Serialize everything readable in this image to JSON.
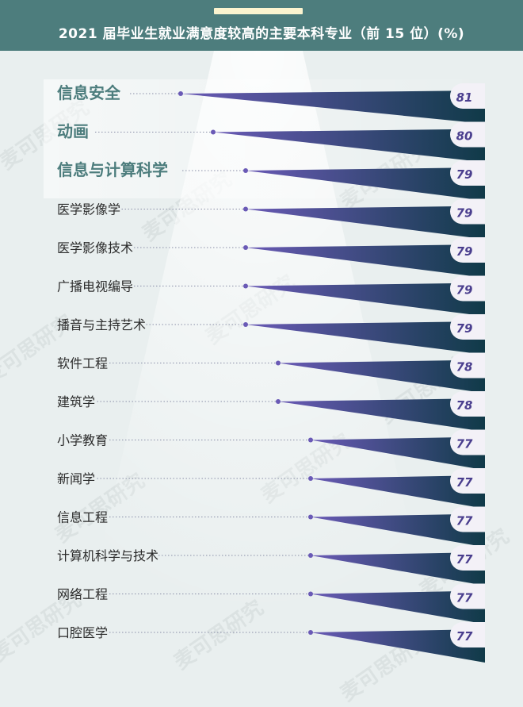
{
  "header": {
    "title": "2021 届毕业生就业满意度较高的主要本科专业（前 15 位）(%)",
    "accent_color": "#fbf3cf",
    "background_color": "#4d7d7d"
  },
  "watermark": {
    "text": "麦可思研究"
  },
  "colors": {
    "triangle_start": "#6a5ab6",
    "triangle_end": "#103a48",
    "highlight_text": "#4d7d7d",
    "normal_text": "#2b2b2b",
    "badge_bg": "#f3f1f7",
    "badge_text": "#4a3e8e"
  },
  "chart_data": {
    "type": "bar",
    "title": "2021 届毕业生就业满意度较高的主要本科专业（前 15 位）(%)",
    "unit": "%",
    "categories": [
      "信息安全",
      "动画",
      "信息与计算科学",
      "医学影像学",
      "医学影像技术",
      "广播电视编导",
      "播音与主持艺术",
      "软件工程",
      "建筑学",
      "小学教育",
      "新闻学",
      "信息工程",
      "计算机科学与技术",
      "网络工程",
      "口腔医学"
    ],
    "values": [
      81,
      80,
      79,
      79,
      79,
      79,
      79,
      78,
      78,
      77,
      77,
      77,
      77,
      77,
      77
    ],
    "highlighted": [
      true,
      true,
      true,
      false,
      false,
      false,
      false,
      false,
      false,
      false,
      false,
      false,
      false,
      false,
      false
    ]
  }
}
